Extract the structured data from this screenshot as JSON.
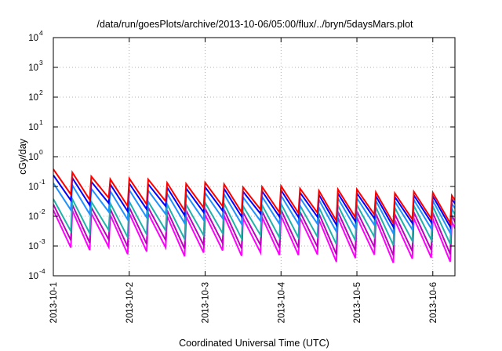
{
  "chart_data": {
    "type": "line",
    "title": "/data/run/goesPlots/archive/2013-10-06/05:00/flux/../bryn/5daysMars.plot",
    "xlabel": "Coordinated Universal Time (UTC)",
    "ylabel": "cGy/day",
    "yscale": "log",
    "ylim": [
      0.0001,
      10000
    ],
    "xlim": [
      "2013-10-01 00:00",
      "2013-10-06 07:00"
    ],
    "grid": true,
    "yticks": [
      {
        "base": "10",
        "exp": "-4"
      },
      {
        "base": "10",
        "exp": "-3"
      },
      {
        "base": "10",
        "exp": "-2"
      },
      {
        "base": "10",
        "exp": "-1"
      },
      {
        "base": "10",
        "exp": "0"
      },
      {
        "base": "10",
        "exp": "1"
      },
      {
        "base": "10",
        "exp": "2"
      },
      {
        "base": "10",
        "exp": "3"
      },
      {
        "base": "10",
        "exp": "4"
      }
    ],
    "xticks": [
      "2013-10-1",
      "2013-10-2",
      "2013-10-3",
      "2013-10-4",
      "2013-10-5",
      "2013-10-6"
    ],
    "sawtooth_period_hours": 6,
    "series": [
      {
        "color": "#ff0000",
        "start_peak": 0.38,
        "end_peak": 0.055,
        "drop": 7,
        "floor_peak": 0.05
      },
      {
        "color": "#0000ff",
        "start_peak": 0.24,
        "end_peak": 0.042,
        "drop": 7,
        "floor_peak": 0.035
      },
      {
        "color": "#1e90ff",
        "start_peak": 0.13,
        "end_peak": 0.03,
        "drop": 8,
        "floor_peak": 0.025
      },
      {
        "color": "#20b2aa",
        "start_peak": 0.038,
        "end_peak": 0.02,
        "drop": 12,
        "floor_peak": 0.016
      },
      {
        "color": "#c000c0",
        "start_peak": 0.025,
        "end_peak": 0.012,
        "drop": 16,
        "floor_peak": 0.009
      },
      {
        "color": "#ff00ff",
        "start_peak": 0.016,
        "end_peak": 0.0075,
        "drop": 18,
        "floor_peak": 0.006
      }
    ]
  }
}
